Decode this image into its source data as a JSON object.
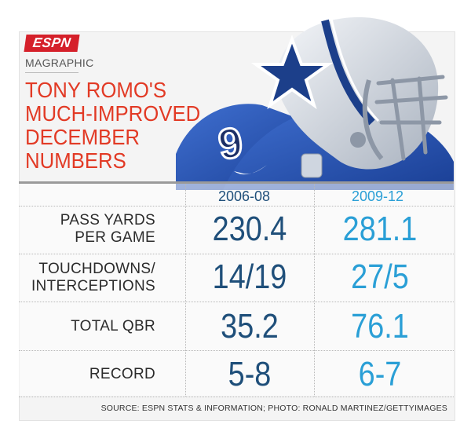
{
  "brand": {
    "logo_text": "ESPN",
    "kicker": "MAGRAPHIC",
    "accent": "#d5202a"
  },
  "headline": [
    "TONY ROMO'S",
    "MUCH-IMPROVED",
    "DECEMBER",
    "NUMBERS"
  ],
  "colors": {
    "headline": "#e23a25",
    "col1": "#1f4f7a",
    "col2": "#2a9fd6"
  },
  "columns": [
    "2006-08",
    "2009-12"
  ],
  "rows": [
    {
      "label": [
        "PASS YARDS",
        "PER GAME"
      ],
      "v1": "230.4",
      "v2": "281.1"
    },
    {
      "label": [
        "TOUCHDOWNS/",
        "INTERCEPTIONS"
      ],
      "v1": "14/19",
      "v2": "27/5"
    },
    {
      "label": [
        "TOTAL QBR"
      ],
      "v1": "35.2",
      "v2": "76.1"
    },
    {
      "label": [
        "RECORD"
      ],
      "v1": "5-8",
      "v2": "6-7"
    }
  ],
  "source": "SOURCE: ESPN STATS & INFORMATION; PHOTO: RONALD MARTINEZ/GETTYIMAGES"
}
